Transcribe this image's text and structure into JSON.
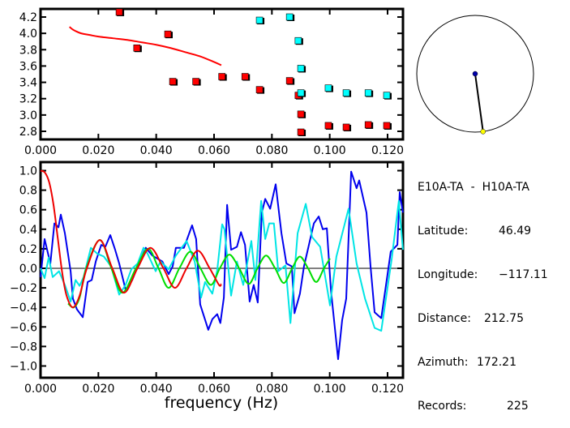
{
  "info": {
    "title": "E10A-TA  -  H10A-TA",
    "rows": [
      {
        "label": "Latitude:",
        "value": "46.49"
      },
      {
        "label": "Longitude:",
        "value": "-117.11"
      },
      {
        "label": "Distance:",
        "value": "212.75"
      },
      {
        "label": "Azimuth:",
        "value": "172.21"
      },
      {
        "label": "Records:",
        "value": "225"
      }
    ]
  },
  "map": {
    "azimuth_deg": 172.21,
    "station_color": "#0000aa",
    "target_color": "#ffff00"
  },
  "chart_data": [
    {
      "type": "scatter",
      "xlim": [
        0,
        0.125
      ],
      "ylim": [
        2.7,
        4.3
      ],
      "xticks": [
        "0.000",
        "0.020",
        "0.040",
        "0.060",
        "0.080",
        "0.100",
        "0.120"
      ],
      "yticks": [
        "2.8",
        "3.0",
        "3.2",
        "3.4",
        "3.6",
        "3.8",
        "4.0",
        "4.2"
      ],
      "series": [
        {
          "kind": "line",
          "color": "#ff0000",
          "points": [
            [
              0.01,
              4.08
            ],
            [
              0.011,
              4.05
            ],
            [
              0.012,
              4.03
            ],
            [
              0.014,
              4.0
            ],
            [
              0.017,
              3.98
            ],
            [
              0.02,
              3.96
            ],
            [
              0.025,
              3.94
            ],
            [
              0.03,
              3.92
            ],
            [
              0.035,
              3.89
            ],
            [
              0.04,
              3.86
            ],
            [
              0.045,
              3.82
            ],
            [
              0.05,
              3.77
            ],
            [
              0.055,
              3.72
            ],
            [
              0.06,
              3.65
            ],
            [
              0.0625,
              3.61
            ]
          ]
        },
        {
          "kind": "marker",
          "color": "#ff0000",
          "points": [
            [
              0.0275,
              4.26
            ],
            [
              0.0336,
              3.82
            ],
            [
              0.0443,
              3.99
            ],
            [
              0.046,
              3.41
            ],
            [
              0.054,
              3.41
            ],
            [
              0.063,
              3.47
            ],
            [
              0.071,
              3.47
            ],
            [
              0.076,
              3.31
            ],
            [
              0.0864,
              3.42
            ],
            [
              0.0894,
              3.24
            ],
            [
              0.0903,
              3.01
            ],
            [
              0.0903,
              2.79
            ],
            [
              0.0998,
              2.87
            ],
            [
              0.106,
              2.85
            ],
            [
              0.1136,
              2.88
            ],
            [
              0.12,
              2.87
            ]
          ]
        },
        {
          "kind": "marker",
          "color": "#00ffff",
          "points": [
            [
              0.076,
              4.16
            ],
            [
              0.0864,
              4.2
            ],
            [
              0.0894,
              3.91
            ],
            [
              0.0903,
              3.57
            ],
            [
              0.0903,
              3.27
            ],
            [
              0.0998,
              3.33
            ],
            [
              0.106,
              3.27
            ],
            [
              0.1136,
              3.27
            ],
            [
              0.12,
              3.24
            ]
          ]
        }
      ]
    },
    {
      "type": "line",
      "xlabel": "frequency (Hz)",
      "xlim": [
        0,
        0.1253
      ],
      "ylim": [
        -1.09,
        1.09
      ],
      "xticks": [
        "0.000",
        "0.020",
        "0.040",
        "0.060",
        "0.080",
        "0.100",
        "0.120"
      ],
      "yticks": [
        "-1.0",
        "-0.8",
        "-0.6",
        "-0.4",
        "-0.2",
        "0.0",
        "0.2",
        "0.4",
        "0.6",
        "0.8",
        "1.0"
      ],
      "zero_line": true,
      "series": [
        {
          "color": "#0000ee",
          "smooth": false,
          "points": [
            [
              0.0,
              -0.09
            ],
            [
              0.0014,
              0.3
            ],
            [
              0.0034,
              0.05
            ],
            [
              0.0048,
              0.46
            ],
            [
              0.0062,
              0.42
            ],
            [
              0.007,
              0.55
            ],
            [
              0.0084,
              0.36
            ],
            [
              0.0104,
              -0.03
            ],
            [
              0.0112,
              -0.31
            ],
            [
              0.0126,
              -0.42
            ],
            [
              0.0146,
              -0.5
            ],
            [
              0.0163,
              -0.14
            ],
            [
              0.0177,
              -0.12
            ],
            [
              0.0191,
              0.07
            ],
            [
              0.021,
              0.24
            ],
            [
              0.0224,
              0.22
            ],
            [
              0.0241,
              0.34
            ],
            [
              0.0258,
              0.19
            ],
            [
              0.0272,
              0.05
            ],
            [
              0.0294,
              -0.22
            ],
            [
              0.0317,
              -0.12
            ],
            [
              0.0336,
              0.02
            ],
            [
              0.0364,
              0.21
            ],
            [
              0.0387,
              0.13
            ],
            [
              0.0421,
              0.07
            ],
            [
              0.0443,
              -0.06
            ],
            [
              0.0457,
              0.02
            ],
            [
              0.0468,
              0.21
            ],
            [
              0.0496,
              0.21
            ],
            [
              0.0524,
              0.44
            ],
            [
              0.0538,
              0.3
            ],
            [
              0.0552,
              -0.37
            ],
            [
              0.058,
              -0.63
            ],
            [
              0.0594,
              -0.52
            ],
            [
              0.0611,
              -0.47
            ],
            [
              0.0622,
              -0.56
            ],
            [
              0.0634,
              -0.3
            ],
            [
              0.0645,
              0.65
            ],
            [
              0.0659,
              0.19
            ],
            [
              0.0679,
              0.22
            ],
            [
              0.0693,
              0.37
            ],
            [
              0.0707,
              0.24
            ],
            [
              0.0723,
              -0.34
            ],
            [
              0.0737,
              -0.17
            ],
            [
              0.0751,
              -0.35
            ],
            [
              0.0765,
              0.57
            ],
            [
              0.0777,
              0.71
            ],
            [
              0.0794,
              0.61
            ],
            [
              0.0813,
              0.86
            ],
            [
              0.0833,
              0.36
            ],
            [
              0.085,
              0.05
            ],
            [
              0.0869,
              0.02
            ],
            [
              0.0878,
              -0.46
            ],
            [
              0.0897,
              -0.26
            ],
            [
              0.0911,
              0.02
            ],
            [
              0.0945,
              0.46
            ],
            [
              0.0962,
              0.53
            ],
            [
              0.0976,
              0.4
            ],
            [
              0.099,
              0.41
            ],
            [
              0.1004,
              -0.22
            ],
            [
              0.1029,
              -0.93
            ],
            [
              0.1043,
              -0.53
            ],
            [
              0.1057,
              -0.31
            ],
            [
              0.1074,
              0.99
            ],
            [
              0.1093,
              0.82
            ],
            [
              0.1102,
              0.9
            ],
            [
              0.1127,
              0.57
            ],
            [
              0.1141,
              0.02
            ],
            [
              0.1155,
              -0.45
            ],
            [
              0.1178,
              -0.51
            ],
            [
              0.12,
              -0.06
            ],
            [
              0.1211,
              0.17
            ],
            [
              0.1234,
              0.24
            ],
            [
              0.1242,
              0.78
            ],
            [
              0.1253,
              0.57
            ]
          ]
        },
        {
          "color": "#00e5e5",
          "smooth": false,
          "points": [
            [
              0.0,
              0.0
            ],
            [
              0.0014,
              -0.1
            ],
            [
              0.0028,
              0.11
            ],
            [
              0.0042,
              -0.09
            ],
            [
              0.0064,
              -0.03
            ],
            [
              0.0084,
              -0.17
            ],
            [
              0.0104,
              -0.34
            ],
            [
              0.0121,
              -0.12
            ],
            [
              0.0135,
              -0.18
            ],
            [
              0.0149,
              -0.09
            ],
            [
              0.0174,
              0.21
            ],
            [
              0.0196,
              0.15
            ],
            [
              0.0219,
              0.12
            ],
            [
              0.0244,
              0.02
            ],
            [
              0.0272,
              -0.27
            ],
            [
              0.0294,
              -0.17
            ],
            [
              0.0314,
              -0.01
            ],
            [
              0.0336,
              0.05
            ],
            [
              0.0356,
              0.21
            ],
            [
              0.037,
              0.15
            ],
            [
              0.0398,
              -0.03
            ],
            [
              0.0415,
              0.07
            ],
            [
              0.0443,
              -0.01
            ],
            [
              0.0468,
              0.13
            ],
            [
              0.0505,
              0.28
            ],
            [
              0.0533,
              0.07
            ],
            [
              0.0555,
              -0.3
            ],
            [
              0.0569,
              -0.14
            ],
            [
              0.0594,
              -0.26
            ],
            [
              0.0611,
              -0.02
            ],
            [
              0.0628,
              0.45
            ],
            [
              0.0636,
              0.4
            ],
            [
              0.0659,
              -0.28
            ],
            [
              0.0679,
              0.07
            ],
            [
              0.0701,
              -0.17
            ],
            [
              0.0729,
              0.28
            ],
            [
              0.0743,
              -0.12
            ],
            [
              0.0763,
              0.69
            ],
            [
              0.0777,
              0.3
            ],
            [
              0.0791,
              0.46
            ],
            [
              0.0807,
              0.46
            ],
            [
              0.0822,
              -0.03
            ],
            [
              0.0847,
              0.03
            ],
            [
              0.0864,
              -0.56
            ],
            [
              0.0889,
              0.36
            ],
            [
              0.0917,
              0.66
            ],
            [
              0.0939,
              0.32
            ],
            [
              0.0967,
              0.22
            ],
            [
              0.1001,
              -0.38
            ],
            [
              0.1023,
              0.12
            ],
            [
              0.1065,
              0.61
            ],
            [
              0.1093,
              0.05
            ],
            [
              0.1122,
              -0.31
            ],
            [
              0.1155,
              -0.61
            ],
            [
              0.1178,
              -0.64
            ],
            [
              0.1214,
              0.09
            ],
            [
              0.1239,
              0.69
            ],
            [
              0.1253,
              0.19
            ]
          ]
        },
        {
          "color": "#00dd00",
          "smooth": true,
          "points": [
            [
              0.0095,
              -0.36
            ],
            [
              0.0115,
              -0.4
            ],
            [
              0.0135,
              -0.3
            ],
            [
              0.0158,
              0.0
            ],
            [
              0.0205,
              0.29
            ],
            [
              0.0245,
              0.0
            ],
            [
              0.0283,
              -0.25
            ],
            [
              0.033,
              0.0
            ],
            [
              0.0372,
              0.2
            ],
            [
              0.0408,
              0.0
            ],
            [
              0.0443,
              -0.2
            ],
            [
              0.048,
              0.0
            ],
            [
              0.0518,
              0.17
            ],
            [
              0.0553,
              0.0
            ],
            [
              0.0589,
              -0.17
            ],
            [
              0.062,
              0.0
            ],
            [
              0.0653,
              0.14
            ],
            [
              0.0687,
              0.0
            ],
            [
              0.072,
              -0.16
            ],
            [
              0.075,
              0.0
            ],
            [
              0.078,
              0.13
            ],
            [
              0.0811,
              0.0
            ],
            [
              0.0841,
              -0.15
            ],
            [
              0.087,
              0.0
            ],
            [
              0.0897,
              0.12
            ],
            [
              0.0925,
              0.0
            ],
            [
              0.0953,
              -0.14
            ],
            [
              0.098,
              0.0
            ],
            [
              0.1001,
              0.1
            ]
          ]
        },
        {
          "color": "#ee0000",
          "smooth": true,
          "points": [
            [
              0.0,
              1.0
            ],
            [
              0.0015,
              0.98
            ],
            [
              0.003,
              0.88
            ],
            [
              0.0045,
              0.65
            ],
            [
              0.006,
              0.3
            ],
            [
              0.0075,
              -0.05
            ],
            [
              0.009,
              -0.28
            ],
            [
              0.0112,
              -0.4
            ],
            [
              0.0135,
              -0.28
            ],
            [
              0.016,
              0.0
            ],
            [
              0.0205,
              0.29
            ],
            [
              0.0248,
              0.0
            ],
            [
              0.0289,
              -0.25
            ],
            [
              0.0335,
              0.0
            ],
            [
              0.038,
              0.21
            ],
            [
              0.0425,
              0.0
            ],
            [
              0.0465,
              -0.2
            ],
            [
              0.0505,
              0.0
            ],
            [
              0.0544,
              0.18
            ],
            [
              0.0585,
              0.0
            ],
            [
              0.0617,
              -0.17
            ],
            [
              0.0625,
              -0.16
            ]
          ]
        }
      ]
    }
  ]
}
